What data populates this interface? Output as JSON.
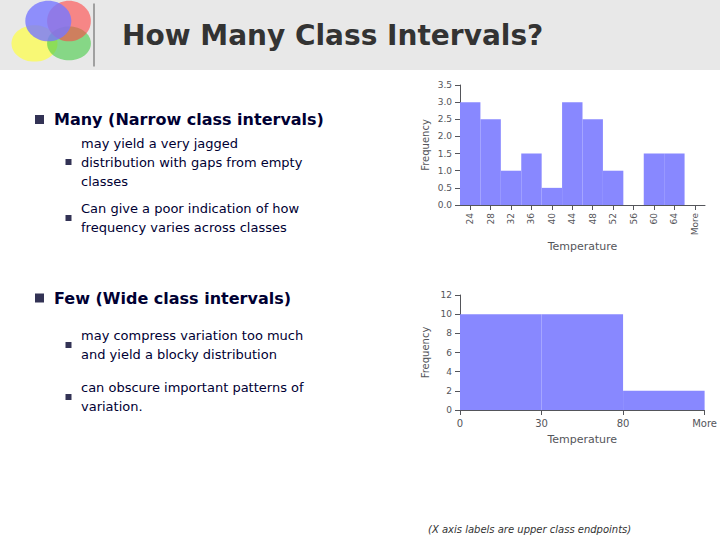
{
  "title": "How Many Class Intervals?",
  "annotations": [
    "Many (Narrow class intervals)",
    "may yield a very jagged\ndistribution with gaps from empty\nclasses",
    "Can give a poor indication of how\nfrequency varies across classes",
    "Few (Wide class intervals)",
    "may compress variation too much\nand yield a blocky distribution",
    "can obscure important patterns of\nvariation.",
    "(X axis labels are upper class endpoints)"
  ],
  "chart_data": [
    {
      "type": "bar",
      "xlabel": "Temperature",
      "ylabel": "Frequency",
      "categories": [
        "24",
        "28",
        "32",
        "36",
        "40",
        "44",
        "48",
        "52",
        "56",
        "60",
        "64",
        "More"
      ],
      "values": [
        3,
        2.5,
        1,
        1.5,
        0.5,
        3,
        2.5,
        1,
        0,
        1.5,
        1.5,
        0
      ],
      "color": "#8888ff",
      "ylim": [
        0,
        3.5
      ],
      "yticks": [
        {
          "value": 0,
          "label": "0.0"
        },
        0.5,
        {
          "value": 1,
          "label": "1.0"
        },
        1.5,
        {
          "value": 2,
          "label": "2.0"
        },
        2.5,
        {
          "value": 3,
          "label": "3.0"
        },
        3.5
      ],
      "grid": false
    },
    {
      "type": "histogram",
      "xlabel": "Temperature",
      "ylabel": "Frequency",
      "bins": [
        "0",
        "30",
        "80",
        "More"
      ],
      "values": [
        10,
        10,
        2
      ],
      "color": "#8888ff",
      "ylim": [
        0,
        12
      ],
      "yticks": [
        0,
        2,
        4,
        6,
        8,
        10,
        12
      ],
      "grid": false
    }
  ]
}
